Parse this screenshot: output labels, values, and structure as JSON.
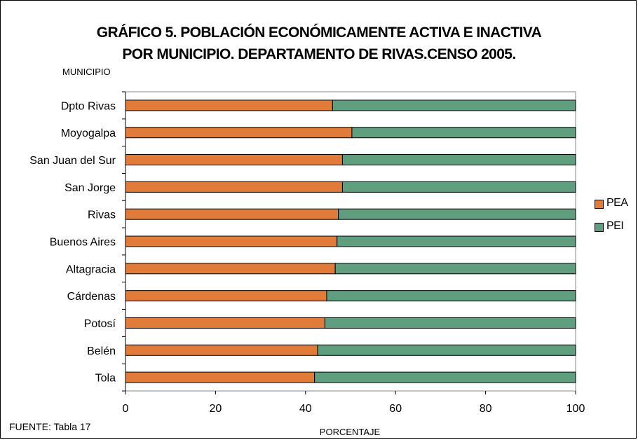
{
  "chart_data": {
    "type": "bar",
    "orientation": "horizontal",
    "stacked": true,
    "title": "GRÁFICO 5. POBLACIÓN ECONÓMICAMENTE ACTIVA E INACTIVA",
    "subtitle": "POR MUNICIPIO. DEPARTAMENTO DE RIVAS.CENSO 2005.",
    "ylabel": "MUNICIPIO",
    "xlabel": "PORCENTAJE",
    "source": "FUENTE: Tabla 17",
    "xlim": [
      0,
      100
    ],
    "xticks": [
      0,
      20,
      40,
      60,
      80,
      100
    ],
    "grid": false,
    "legend_position": "right",
    "categories": [
      "Dpto Rivas",
      "Moyogalpa",
      "San Juan del Sur",
      "San Jorge",
      "Rivas",
      "Buenos Aires",
      "Altagracia",
      "Cárdenas",
      "Potosí",
      "Belén",
      "Tola"
    ],
    "series": [
      {
        "name": "PEA",
        "color": "#e07b3a",
        "values": [
          46.0,
          50.3,
          48.2,
          48.2,
          47.3,
          47.0,
          46.6,
          44.7,
          44.3,
          42.7,
          42.0
        ]
      },
      {
        "name": "PEI",
        "color": "#5f9e7e",
        "values": [
          54.0,
          49.7,
          51.8,
          51.8,
          52.7,
          53.0,
          53.4,
          55.3,
          55.7,
          57.3,
          58.0
        ]
      }
    ]
  }
}
